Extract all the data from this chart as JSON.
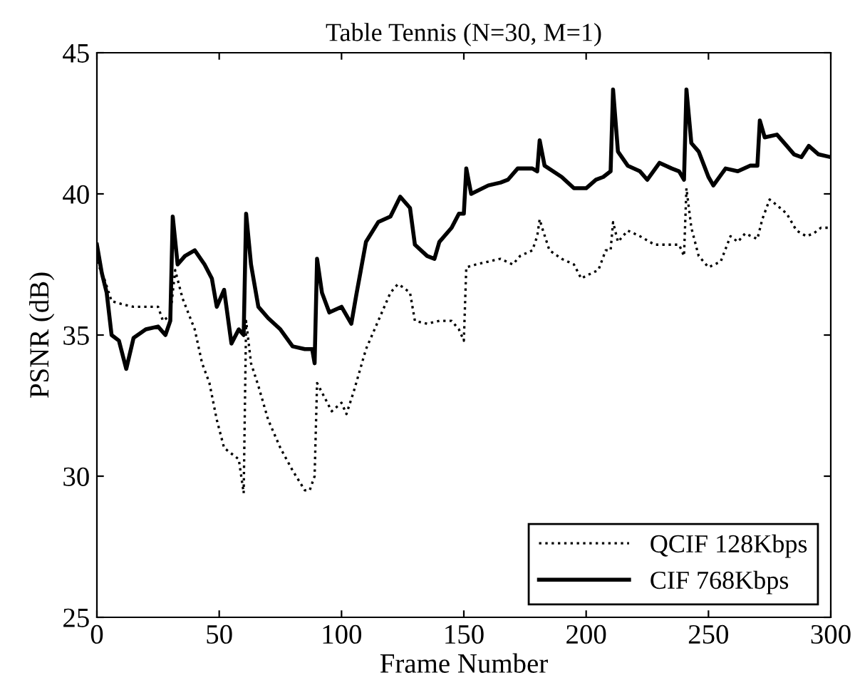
{
  "chart_data": {
    "type": "line",
    "title": "Table Tennis (N=30, M=1)",
    "xlabel": "Frame Number",
    "ylabel": "PSNR (dB)",
    "xlim": [
      0,
      300
    ],
    "xticks": [
      0,
      50,
      100,
      150,
      200,
      250,
      300
    ],
    "ylim": [
      25,
      45
    ],
    "yticks": [
      25,
      30,
      35,
      40,
      45
    ],
    "grid": false,
    "legend": "bottom right",
    "series": [
      {
        "name": "QCIF 128Kbps",
        "color": "#000000",
        "line_style": "dotted",
        "x": [
          0,
          3,
          6,
          10,
          15,
          20,
          25,
          27,
          30,
          32,
          35,
          40,
          43,
          46,
          49,
          52,
          55,
          58,
          60,
          61,
          63,
          66,
          70,
          75,
          80,
          85,
          87,
          89,
          90,
          93,
          96,
          100,
          102,
          105,
          110,
          115,
          120,
          123,
          125,
          128,
          130,
          135,
          140,
          145,
          148,
          150,
          151,
          155,
          160,
          165,
          170,
          173,
          178,
          180,
          181,
          182,
          185,
          190,
          195,
          198,
          200,
          205,
          208,
          210,
          211,
          213,
          217,
          222,
          228,
          234,
          238,
          240,
          241,
          243,
          246,
          250,
          255,
          259,
          262,
          265,
          270,
          272,
          275,
          278,
          282,
          286,
          290,
          293,
          296,
          300
        ],
        "values": [
          37.6,
          37.0,
          36.2,
          36.1,
          36.0,
          36.0,
          36.0,
          35.5,
          35.7,
          37.3,
          36.3,
          35.2,
          34.0,
          33.3,
          32.0,
          31.0,
          30.8,
          30.6,
          29.4,
          35.5,
          34.0,
          33.2,
          32.0,
          31.0,
          30.2,
          29.5,
          29.5,
          30.0,
          33.3,
          32.8,
          32.3,
          32.6,
          32.2,
          33.0,
          34.5,
          35.5,
          36.5,
          36.8,
          36.7,
          36.5,
          35.5,
          35.4,
          35.5,
          35.5,
          35.2,
          34.8,
          37.4,
          37.5,
          37.6,
          37.7,
          37.5,
          37.8,
          38.0,
          38.5,
          39.1,
          38.8,
          38.0,
          37.7,
          37.5,
          37.0,
          37.1,
          37.3,
          38.0,
          38.0,
          39.0,
          38.3,
          38.7,
          38.5,
          38.2,
          38.2,
          38.2,
          37.8,
          40.2,
          38.8,
          37.8,
          37.4,
          37.6,
          38.5,
          38.3,
          38.6,
          38.4,
          39.1,
          39.8,
          39.6,
          39.3,
          38.7,
          38.5,
          38.6,
          38.8,
          38.8
        ]
      },
      {
        "name": "CIF 768Kbps",
        "color": "#000000",
        "line_style": "solid",
        "x": [
          0,
          2,
          4,
          6,
          9,
          12,
          15,
          20,
          25,
          28,
          30,
          31,
          33,
          36,
          40,
          44,
          47,
          49,
          52,
          55,
          58,
          60,
          61,
          63,
          66,
          70,
          75,
          80,
          85,
          88,
          89,
          90,
          92,
          95,
          100,
          104,
          106,
          110,
          115,
          120,
          124,
          128,
          130,
          135,
          138,
          140,
          145,
          148,
          150,
          151,
          153,
          160,
          165,
          168,
          172,
          178,
          180,
          181,
          183,
          190,
          195,
          200,
          204,
          207,
          210,
          211,
          213,
          217,
          222,
          225,
          230,
          235,
          238,
          240,
          241,
          243,
          246,
          250,
          252,
          257,
          262,
          267,
          270,
          271,
          273,
          278,
          282,
          285,
          288,
          291,
          295,
          300
        ],
        "values": [
          38.2,
          37.2,
          36.5,
          35.0,
          34.8,
          33.8,
          34.9,
          35.2,
          35.3,
          35.0,
          35.5,
          39.2,
          37.5,
          37.8,
          38.0,
          37.5,
          37.0,
          36.0,
          36.6,
          34.7,
          35.2,
          35.0,
          39.3,
          37.5,
          36.0,
          35.6,
          35.2,
          34.6,
          34.5,
          34.5,
          34.0,
          37.7,
          36.5,
          35.8,
          36.0,
          35.4,
          36.4,
          38.3,
          39.0,
          39.2,
          39.9,
          39.5,
          38.2,
          37.8,
          37.7,
          38.3,
          38.8,
          39.3,
          39.3,
          40.9,
          40.0,
          40.3,
          40.4,
          40.5,
          40.9,
          40.9,
          40.8,
          41.9,
          41.0,
          40.6,
          40.2,
          40.2,
          40.5,
          40.6,
          40.8,
          43.7,
          41.5,
          41.0,
          40.8,
          40.5,
          41.1,
          40.9,
          40.8,
          40.5,
          43.7,
          41.8,
          41.5,
          40.6,
          40.3,
          40.9,
          40.8,
          41.0,
          41.0,
          42.6,
          42.0,
          42.1,
          41.7,
          41.4,
          41.3,
          41.7,
          41.4,
          41.3
        ]
      }
    ]
  }
}
